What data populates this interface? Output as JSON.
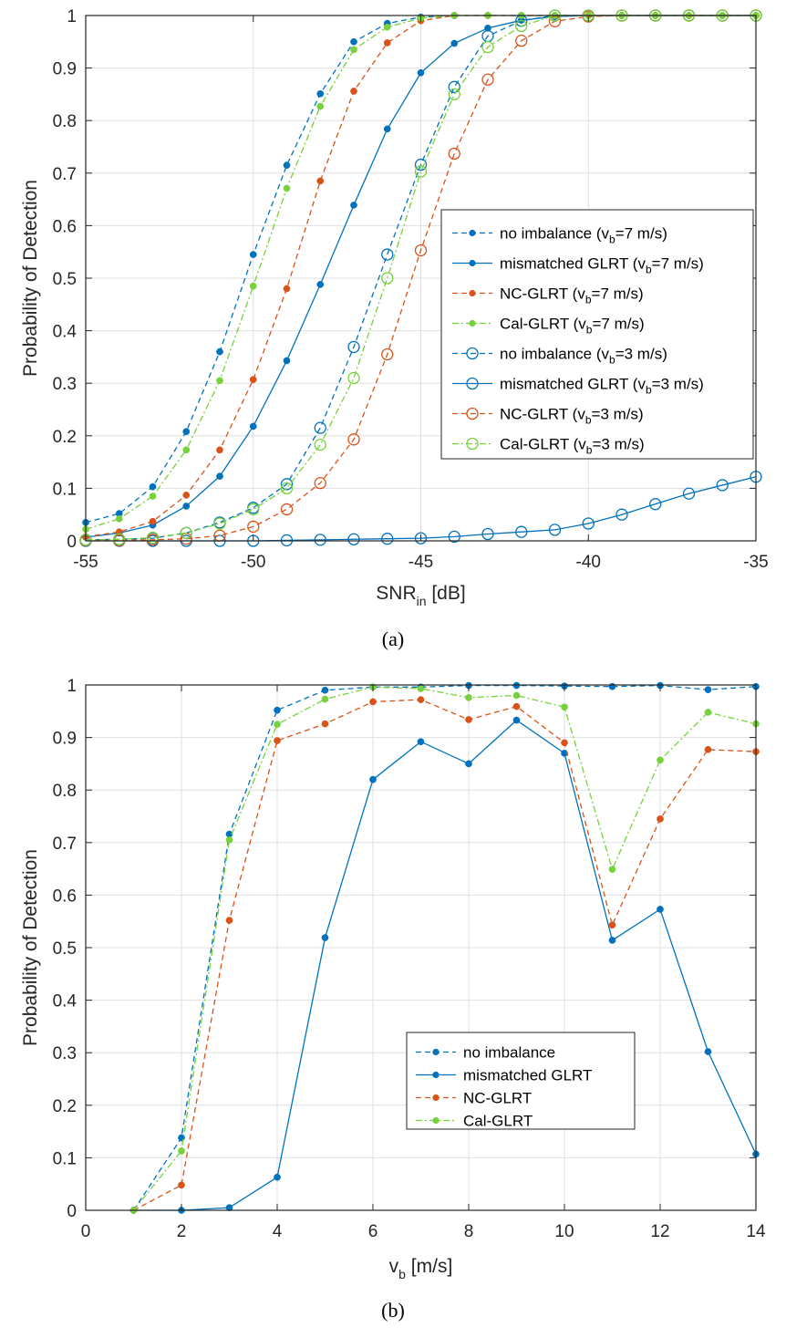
{
  "colors": {
    "blue": "#0072BD",
    "orange": "#D95319",
    "green": "#77D13A",
    "grid": "#DFDFDF",
    "axis": "#262626"
  },
  "chart_data": [
    {
      "type": "line",
      "caption": "(a)",
      "xlabel": "SNR",
      "xlabel_sub": "in",
      "xlabel_unit": " [dB]",
      "ylabel": "Probability of Detection",
      "xlim": [
        -55,
        -35
      ],
      "ylim": [
        0,
        1
      ],
      "xticks": [
        -55,
        -50,
        -45,
        -40,
        -35
      ],
      "yticks": [
        0,
        0.1,
        0.2,
        0.3,
        0.4,
        0.5,
        0.6,
        0.7,
        0.8,
        0.9,
        1
      ],
      "grid": true,
      "legend_position": "right",
      "x": [
        -55,
        -54,
        -53,
        -52,
        -51,
        -50,
        -49,
        -48,
        -47,
        -46,
        -45,
        -44,
        -43,
        -42,
        -41,
        -40,
        -39,
        -38,
        -37,
        -36,
        -35
      ],
      "series": [
        {
          "name_a": "no imbalance (v",
          "name_sub": "b",
          "name_b": "=7 m/s)",
          "color": "blue",
          "dash": "dashed",
          "marker": "dot",
          "values": [
            0.035,
            0.052,
            0.103,
            0.208,
            0.36,
            0.545,
            0.715,
            0.851,
            0.95,
            0.985,
            0.997,
            1,
            1,
            1,
            1,
            1,
            1,
            1,
            1,
            1,
            1
          ]
        },
        {
          "name_a": "mismatched GLRT (v",
          "name_sub": "b",
          "name_b": "=7 m/s)",
          "color": "blue",
          "dash": "solid",
          "marker": "dot",
          "values": [
            0.007,
            0.015,
            0.03,
            0.066,
            0.123,
            0.218,
            0.343,
            0.488,
            0.639,
            0.784,
            0.891,
            0.947,
            0.976,
            0.991,
            0.998,
            1,
            1,
            1,
            1,
            1,
            1
          ]
        },
        {
          "name_a": "NC-GLRT (v",
          "name_sub": "b",
          "name_b": "=7 m/s)",
          "color": "orange",
          "dash": "dashed",
          "marker": "dot",
          "values": [
            0.008,
            0.017,
            0.037,
            0.087,
            0.173,
            0.307,
            0.48,
            0.685,
            0.856,
            0.948,
            0.99,
            1,
            1,
            1,
            1,
            1,
            1,
            1,
            1,
            1,
            1
          ]
        },
        {
          "name_a": "Cal-GLRT (v",
          "name_sub": "b",
          "name_b": "=7 m/s)",
          "color": "green",
          "dash": "dashdot",
          "marker": "dot",
          "values": [
            0.022,
            0.042,
            0.085,
            0.173,
            0.305,
            0.485,
            0.671,
            0.827,
            0.935,
            0.978,
            0.995,
            1,
            1,
            1,
            1,
            1,
            1,
            1,
            1,
            1,
            1
          ]
        },
        {
          "name_a": "no imbalance (v",
          "name_sub": "b",
          "name_b": "=3 m/s)",
          "color": "blue",
          "dash": "dashed",
          "marker": "circle",
          "values": [
            0.002,
            0.003,
            0.005,
            0.015,
            0.035,
            0.063,
            0.108,
            0.215,
            0.369,
            0.545,
            0.716,
            0.864,
            0.961,
            0.99,
            1,
            1,
            1,
            1,
            1,
            1,
            1
          ]
        },
        {
          "name_a": "mismatched GLRT (v",
          "name_sub": "b",
          "name_b": "=3 m/s)",
          "color": "blue",
          "dash": "solid",
          "marker": "circle",
          "values": [
            0,
            0,
            0,
            0,
            0,
            0,
            0.001,
            0.002,
            0.003,
            0.004,
            0.005,
            0.008,
            0.013,
            0.017,
            0.021,
            0.033,
            0.05,
            0.07,
            0.09,
            0.106,
            0.122
          ]
        },
        {
          "name_a": "NC-GLRT (v",
          "name_sub": "b",
          "name_b": "=3 m/s)",
          "color": "orange",
          "dash": "dashed",
          "marker": "circle",
          "values": [
            0.001,
            0.001,
            0.002,
            0.004,
            0.01,
            0.027,
            0.06,
            0.11,
            0.193,
            0.355,
            0.553,
            0.737,
            0.878,
            0.952,
            0.989,
            0.998,
            1,
            1,
            1,
            1,
            1
          ]
        },
        {
          "name_a": "Cal-GLRT (v",
          "name_sub": "b",
          "name_b": "=3 m/s)",
          "color": "green",
          "dash": "dashdot",
          "marker": "circle",
          "values": [
            0.002,
            0.003,
            0.006,
            0.015,
            0.033,
            0.06,
            0.1,
            0.183,
            0.31,
            0.5,
            0.703,
            0.85,
            0.94,
            0.98,
            1,
            1,
            1,
            1,
            1,
            1,
            1
          ]
        }
      ]
    },
    {
      "type": "line",
      "caption": "(b)",
      "xlabel": "v",
      "xlabel_sub": "b",
      "xlabel_unit": " [m/s]",
      "ylabel": "Probability of Detection",
      "xlim": [
        0,
        14
      ],
      "ylim": [
        0,
        1
      ],
      "xticks": [
        0,
        2,
        4,
        6,
        8,
        10,
        12,
        14
      ],
      "yticks": [
        0,
        0.1,
        0.2,
        0.3,
        0.4,
        0.5,
        0.6,
        0.7,
        0.8,
        0.9,
        1
      ],
      "grid": true,
      "legend_position": "center-right",
      "x": [
        1,
        2,
        3,
        4,
        5,
        6,
        7,
        8,
        9,
        10,
        11,
        12,
        13,
        14
      ],
      "series": [
        {
          "name_a": "no imbalance",
          "name_sub": "",
          "name_b": "",
          "color": "blue",
          "dash": "dashed",
          "marker": "dot",
          "values": [
            0,
            0.138,
            0.716,
            0.952,
            0.99,
            0.996,
            0.996,
            0.999,
            0.999,
            0.998,
            0.997,
            0.999,
            0.991,
            0.997
          ]
        },
        {
          "name_a": "mismatched GLRT",
          "name_sub": "",
          "name_b": "",
          "color": "blue",
          "dash": "solid",
          "marker": "dot",
          "values": [
            0,
            0,
            0.005,
            0.063,
            0.519,
            0.82,
            0.892,
            0.85,
            0.933,
            0.87,
            0.514,
            0.573,
            0.302,
            0.107
          ]
        },
        {
          "name_a": "NC-GLRT",
          "name_sub": "",
          "name_b": "",
          "color": "orange",
          "dash": "dashed",
          "marker": "dot",
          "values": [
            0,
            0.048,
            0.552,
            0.894,
            0.926,
            0.968,
            0.972,
            0.934,
            0.959,
            0.89,
            0.543,
            0.745,
            0.877,
            0.873
          ]
        },
        {
          "name_a": "Cal-GLRT",
          "name_sub": "",
          "name_b": "",
          "color": "green",
          "dash": "dashdot",
          "marker": "dot",
          "values": [
            0,
            0.113,
            0.705,
            0.925,
            0.973,
            0.996,
            0.993,
            0.976,
            0.98,
            0.958,
            0.649,
            0.857,
            0.948,
            0.926
          ]
        }
      ]
    }
  ]
}
